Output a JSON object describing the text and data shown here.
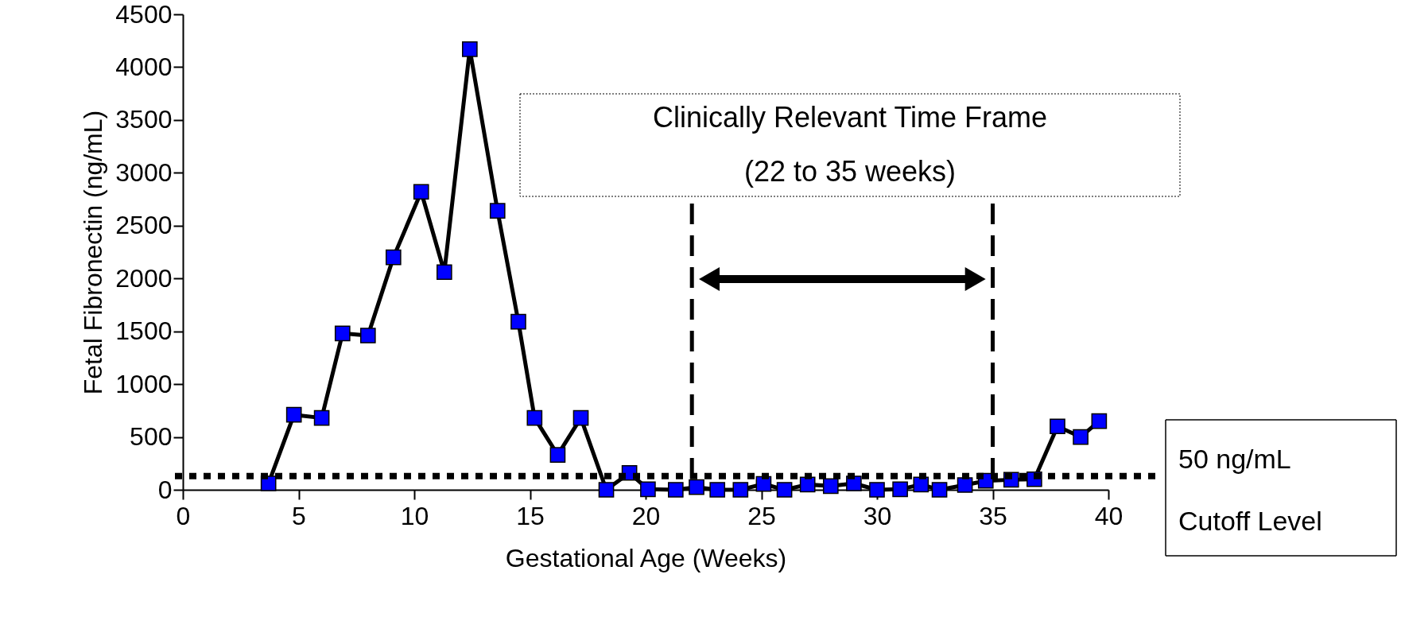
{
  "chart_data": {
    "type": "line",
    "xlabel": "Gestational Age (Weeks)",
    "ylabel": "Fetal Fibronectin (ng/mL)",
    "x": [
      3.7,
      4.8,
      6.0,
      6.9,
      8.0,
      9.1,
      10.3,
      11.3,
      12.4,
      13.6,
      14.5,
      15.2,
      16.2,
      17.2,
      18.3,
      19.3,
      20.1,
      21.3,
      22.2,
      23.1,
      24.1,
      25.1,
      26.0,
      27.0,
      28.0,
      29.0,
      30.0,
      31.0,
      31.9,
      32.7,
      33.8,
      34.7,
      35.8,
      36.8,
      37.8,
      38.8,
      39.6
    ],
    "series": [
      {
        "color": "#0000ff",
        "values": [
          60,
          710,
          680,
          1480,
          1460,
          2200,
          2820,
          2060,
          4170,
          2640,
          1590,
          680,
          330,
          680,
          0,
          160,
          5,
          0,
          25,
          0,
          0,
          55,
          0,
          50,
          35,
          60,
          0,
          5,
          50,
          0,
          45,
          85,
          95,
          100,
          600,
          500,
          650
        ]
      }
    ],
    "marker": "square",
    "line_style": "solid",
    "xlim": [
      0,
      40
    ],
    "xticks": [
      0,
      5,
      10,
      15,
      20,
      25,
      30,
      35,
      40
    ],
    "ylim": [
      0,
      4500
    ],
    "yticks": [
      0,
      500,
      1000,
      1500,
      2000,
      2500,
      3000,
      3500,
      4000,
      4500
    ],
    "grid": false,
    "ref_lines": [
      {
        "axis": "y",
        "value": 130,
        "label": "50 ng/mL\nCutoff Level",
        "line_style": "dotted",
        "color": "#000000"
      },
      {
        "axis": "x",
        "value": 22,
        "label": null,
        "line_style": "dashed",
        "color": "#000000"
      },
      {
        "axis": "x",
        "value": 35,
        "label": null,
        "line_style": "dashed",
        "color": "#000000"
      }
    ],
    "annotations": [
      "Clinically Relevant Time Frame\n(22 to 35 weeks)"
    ]
  }
}
